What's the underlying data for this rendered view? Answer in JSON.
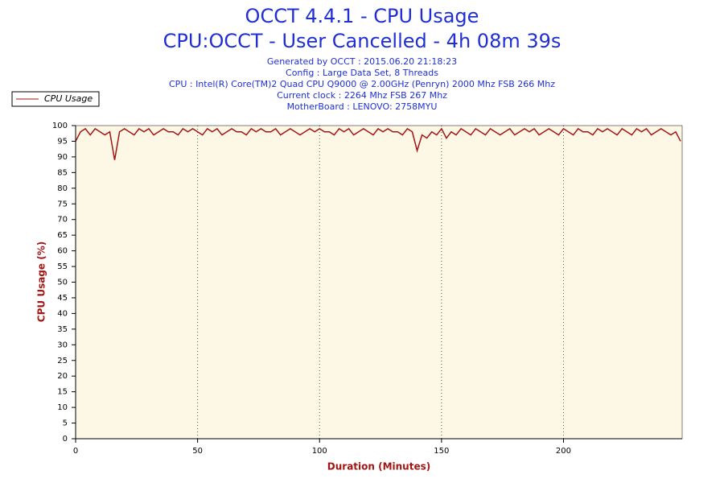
{
  "chart_data": {
    "type": "line",
    "title": "OCCT 4.4.1 - CPU Usage",
    "subtitle": "CPU:OCCT - User Cancelled - 4h 08m 39s",
    "info": [
      "Generated by OCCT : 2015.06.20 21:18:23",
      "Config : Large Data Set, 8 Threads",
      "CPU : Intel(R) Core(TM)2 Quad CPU Q9000 @ 2.00GHz (Penryn) 2000 Mhz FSB 266 Mhz",
      "Current clock : 2264 Mhz FSB 267 Mhz",
      "MotherBoard : LENOVO: 2758MYU"
    ],
    "x_label": "Duration (Minutes)",
    "y_label": "CPU Usage (%)",
    "xlim": [
      0,
      248.65
    ],
    "xticks": [
      0,
      50,
      100,
      150,
      200
    ],
    "ylim": [
      0,
      100
    ],
    "yticks": [
      0,
      5,
      10,
      15,
      20,
      25,
      30,
      35,
      40,
      45,
      50,
      55,
      60,
      65,
      70,
      75,
      80,
      85,
      90,
      95,
      100
    ],
    "grid": true,
    "legend": "top-left",
    "x": [
      0,
      2,
      4,
      6,
      8,
      10,
      12,
      14,
      16,
      18,
      20,
      22,
      24,
      26,
      28,
      30,
      32,
      34,
      36,
      38,
      40,
      42,
      44,
      46,
      48,
      50,
      52,
      54,
      56,
      58,
      60,
      62,
      64,
      66,
      68,
      70,
      72,
      74,
      76,
      78,
      80,
      82,
      84,
      86,
      88,
      90,
      92,
      94,
      96,
      98,
      100,
      102,
      104,
      106,
      108,
      110,
      112,
      114,
      116,
      118,
      120,
      122,
      124,
      126,
      128,
      130,
      132,
      134,
      136,
      138,
      140,
      142,
      144,
      146,
      148,
      150,
      152,
      154,
      156,
      158,
      160,
      162,
      164,
      166,
      168,
      170,
      172,
      174,
      176,
      178,
      180,
      182,
      184,
      186,
      188,
      190,
      192,
      194,
      196,
      198,
      200,
      202,
      204,
      206,
      208,
      210,
      212,
      214,
      216,
      218,
      220,
      222,
      224,
      226,
      228,
      230,
      232,
      234,
      236,
      238,
      240,
      242,
      244,
      246,
      248
    ],
    "series": [
      {
        "name": "CPU Usage",
        "color": "#a31515",
        "values": [
          95,
          98,
          99,
          97,
          99,
          98,
          97,
          98,
          89,
          98,
          99,
          98,
          97,
          99,
          98,
          99,
          97,
          98,
          99,
          98,
          98,
          97,
          99,
          98,
          99,
          98,
          97,
          99,
          98,
          99,
          97,
          98,
          99,
          98,
          98,
          97,
          99,
          98,
          99,
          98,
          98,
          99,
          97,
          98,
          99,
          98,
          97,
          98,
          99,
          98,
          99,
          98,
          98,
          97,
          99,
          98,
          99,
          97,
          98,
          99,
          98,
          97,
          99,
          98,
          99,
          98,
          98,
          97,
          99,
          98,
          92,
          97,
          96,
          98,
          97,
          99,
          96,
          98,
          97,
          99,
          98,
          97,
          99,
          98,
          97,
          99,
          98,
          97,
          98,
          99,
          97,
          98,
          99,
          98,
          99,
          97,
          98,
          99,
          98,
          97,
          99,
          98,
          97,
          99,
          98,
          98,
          97,
          99,
          98,
          99,
          98,
          97,
          99,
          98,
          97,
          99,
          98,
          99,
          97,
          98,
          99,
          98,
          97,
          98,
          95
        ]
      }
    ]
  }
}
